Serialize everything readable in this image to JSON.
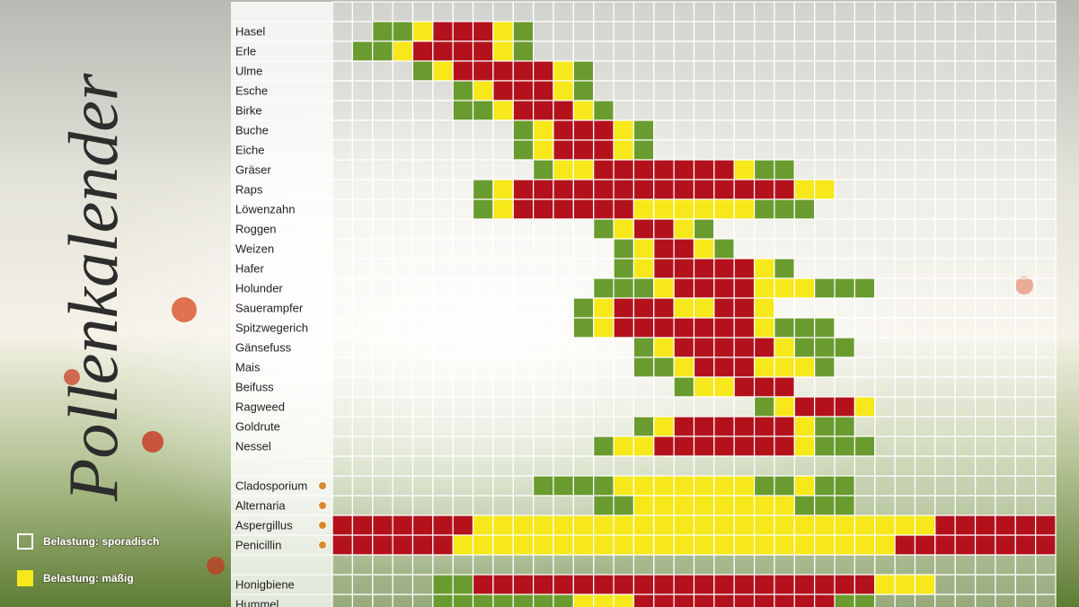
{
  "title": "Pollenkalender",
  "level_colors": [
    "#6a9b2f",
    "#f6e81a",
    "#b3121c"
  ],
  "legend": [
    {
      "label": "Belastung: sporadisch",
      "level": 0
    },
    {
      "label": "Belastung: mäßig",
      "level": 1
    }
  ],
  "groups": {
    "plants": [
      {
        "label": "Hasel",
        "cells": [
          0,
          0,
          1,
          1,
          2,
          3,
          3,
          3,
          2,
          1,
          0,
          0,
          0,
          0,
          0,
          0,
          0,
          0,
          0,
          0,
          0,
          0,
          0,
          0,
          0,
          0,
          0,
          0,
          0,
          0,
          0,
          0,
          0,
          0,
          0,
          0
        ]
      },
      {
        "label": "Erle",
        "cells": [
          0,
          1,
          1,
          2,
          3,
          3,
          3,
          3,
          2,
          1,
          0,
          0,
          0,
          0,
          0,
          0,
          0,
          0,
          0,
          0,
          0,
          0,
          0,
          0,
          0,
          0,
          0,
          0,
          0,
          0,
          0,
          0,
          0,
          0,
          0,
          0
        ]
      },
      {
        "label": "Ulme",
        "cells": [
          0,
          0,
          0,
          0,
          1,
          2,
          3,
          3,
          3,
          3,
          3,
          2,
          1,
          0,
          0,
          0,
          0,
          0,
          0,
          0,
          0,
          0,
          0,
          0,
          0,
          0,
          0,
          0,
          0,
          0,
          0,
          0,
          0,
          0,
          0,
          0
        ]
      },
      {
        "label": "Esche",
        "cells": [
          0,
          0,
          0,
          0,
          0,
          0,
          1,
          2,
          3,
          3,
          3,
          2,
          1,
          0,
          0,
          0,
          0,
          0,
          0,
          0,
          0,
          0,
          0,
          0,
          0,
          0,
          0,
          0,
          0,
          0,
          0,
          0,
          0,
          0,
          0,
          0
        ]
      },
      {
        "label": "Birke",
        "cells": [
          0,
          0,
          0,
          0,
          0,
          0,
          1,
          1,
          2,
          3,
          3,
          3,
          2,
          1,
          0,
          0,
          0,
          0,
          0,
          0,
          0,
          0,
          0,
          0,
          0,
          0,
          0,
          0,
          0,
          0,
          0,
          0,
          0,
          0,
          0,
          0
        ]
      },
      {
        "label": "Buche",
        "cells": [
          0,
          0,
          0,
          0,
          0,
          0,
          0,
          0,
          0,
          1,
          2,
          3,
          3,
          3,
          2,
          1,
          0,
          0,
          0,
          0,
          0,
          0,
          0,
          0,
          0,
          0,
          0,
          0,
          0,
          0,
          0,
          0,
          0,
          0,
          0,
          0
        ]
      },
      {
        "label": "Eiche",
        "cells": [
          0,
          0,
          0,
          0,
          0,
          0,
          0,
          0,
          0,
          1,
          2,
          3,
          3,
          3,
          2,
          1,
          0,
          0,
          0,
          0,
          0,
          0,
          0,
          0,
          0,
          0,
          0,
          0,
          0,
          0,
          0,
          0,
          0,
          0,
          0,
          0
        ]
      },
      {
        "label": "Gräser",
        "cells": [
          0,
          0,
          0,
          0,
          0,
          0,
          0,
          0,
          0,
          0,
          1,
          2,
          2,
          3,
          3,
          3,
          3,
          3,
          3,
          3,
          2,
          1,
          1,
          0,
          0,
          0,
          0,
          0,
          0,
          0,
          0,
          0,
          0,
          0,
          0,
          0
        ]
      },
      {
        "label": "Raps",
        "cells": [
          0,
          0,
          0,
          0,
          0,
          0,
          0,
          1,
          2,
          3,
          3,
          3,
          3,
          3,
          3,
          3,
          3,
          3,
          3,
          3,
          3,
          3,
          3,
          2,
          2,
          0,
          0,
          0,
          0,
          0,
          0,
          0,
          0,
          0,
          0,
          0
        ]
      },
      {
        "label": "Löwenzahn",
        "cells": [
          0,
          0,
          0,
          0,
          0,
          0,
          0,
          1,
          2,
          3,
          3,
          3,
          3,
          3,
          3,
          2,
          2,
          2,
          2,
          2,
          2,
          1,
          1,
          1,
          0,
          0,
          0,
          0,
          0,
          0,
          0,
          0,
          0,
          0,
          0,
          0
        ]
      },
      {
        "label": "Roggen",
        "cells": [
          0,
          0,
          0,
          0,
          0,
          0,
          0,
          0,
          0,
          0,
          0,
          0,
          0,
          1,
          2,
          3,
          3,
          2,
          1,
          0,
          0,
          0,
          0,
          0,
          0,
          0,
          0,
          0,
          0,
          0,
          0,
          0,
          0,
          0,
          0,
          0
        ]
      },
      {
        "label": "Weizen",
        "cells": [
          0,
          0,
          0,
          0,
          0,
          0,
          0,
          0,
          0,
          0,
          0,
          0,
          0,
          0,
          1,
          2,
          3,
          3,
          2,
          1,
          0,
          0,
          0,
          0,
          0,
          0,
          0,
          0,
          0,
          0,
          0,
          0,
          0,
          0,
          0,
          0
        ]
      },
      {
        "label": "Hafer",
        "cells": [
          0,
          0,
          0,
          0,
          0,
          0,
          0,
          0,
          0,
          0,
          0,
          0,
          0,
          0,
          1,
          2,
          3,
          3,
          3,
          3,
          3,
          2,
          1,
          0,
          0,
          0,
          0,
          0,
          0,
          0,
          0,
          0,
          0,
          0,
          0,
          0
        ]
      },
      {
        "label": "Holunder",
        "cells": [
          0,
          0,
          0,
          0,
          0,
          0,
          0,
          0,
          0,
          0,
          0,
          0,
          0,
          1,
          1,
          1,
          2,
          3,
          3,
          3,
          3,
          2,
          2,
          2,
          1,
          1,
          1,
          0,
          0,
          0,
          0,
          0,
          0,
          0,
          0,
          0
        ]
      },
      {
        "label": "Sauerampfer",
        "cells": [
          0,
          0,
          0,
          0,
          0,
          0,
          0,
          0,
          0,
          0,
          0,
          0,
          1,
          2,
          3,
          3,
          3,
          2,
          2,
          3,
          3,
          2,
          0,
          0,
          0,
          0,
          0,
          0,
          0,
          0,
          0,
          0,
          0,
          0,
          0,
          0
        ]
      },
      {
        "label": "Spitzwegerich",
        "cells": [
          0,
          0,
          0,
          0,
          0,
          0,
          0,
          0,
          0,
          0,
          0,
          0,
          1,
          2,
          3,
          3,
          3,
          3,
          3,
          3,
          3,
          2,
          1,
          1,
          1,
          0,
          0,
          0,
          0,
          0,
          0,
          0,
          0,
          0,
          0,
          0
        ]
      },
      {
        "label": "Gänsefuss",
        "cells": [
          0,
          0,
          0,
          0,
          0,
          0,
          0,
          0,
          0,
          0,
          0,
          0,
          0,
          0,
          0,
          1,
          2,
          3,
          3,
          3,
          3,
          3,
          2,
          1,
          1,
          1,
          0,
          0,
          0,
          0,
          0,
          0,
          0,
          0,
          0,
          0
        ]
      },
      {
        "label": "Mais",
        "cells": [
          0,
          0,
          0,
          0,
          0,
          0,
          0,
          0,
          0,
          0,
          0,
          0,
          0,
          0,
          0,
          1,
          1,
          2,
          3,
          3,
          3,
          2,
          2,
          2,
          1,
          0,
          0,
          0,
          0,
          0,
          0,
          0,
          0,
          0,
          0,
          0
        ]
      },
      {
        "label": "Beifuss",
        "cells": [
          0,
          0,
          0,
          0,
          0,
          0,
          0,
          0,
          0,
          0,
          0,
          0,
          0,
          0,
          0,
          0,
          0,
          1,
          2,
          2,
          3,
          3,
          3,
          0,
          0,
          0,
          0,
          0,
          0,
          0,
          0,
          0,
          0,
          0,
          0,
          0
        ]
      },
      {
        "label": "Ragweed",
        "cells": [
          0,
          0,
          0,
          0,
          0,
          0,
          0,
          0,
          0,
          0,
          0,
          0,
          0,
          0,
          0,
          0,
          0,
          0,
          0,
          0,
          0,
          1,
          2,
          3,
          3,
          3,
          2,
          0,
          0,
          0,
          0,
          0,
          0,
          0,
          0,
          0
        ]
      },
      {
        "label": "Goldrute",
        "cells": [
          0,
          0,
          0,
          0,
          0,
          0,
          0,
          0,
          0,
          0,
          0,
          0,
          0,
          0,
          0,
          1,
          2,
          3,
          3,
          3,
          3,
          3,
          3,
          2,
          1,
          1,
          0,
          0,
          0,
          0,
          0,
          0,
          0,
          0,
          0,
          0
        ]
      },
      {
        "label": "Nessel",
        "cells": [
          0,
          0,
          0,
          0,
          0,
          0,
          0,
          0,
          0,
          0,
          0,
          0,
          0,
          1,
          2,
          2,
          3,
          3,
          3,
          3,
          3,
          3,
          3,
          2,
          1,
          1,
          1,
          0,
          0,
          0,
          0,
          0,
          0,
          0,
          0,
          0
        ]
      }
    ],
    "molds": [
      {
        "label": "Cladosporium",
        "cells": [
          0,
          0,
          0,
          0,
          0,
          0,
          0,
          0,
          0,
          0,
          1,
          1,
          1,
          1,
          2,
          2,
          2,
          2,
          2,
          2,
          2,
          1,
          1,
          2,
          1,
          1,
          0,
          0,
          0,
          0,
          0,
          0,
          0,
          0,
          0,
          0
        ]
      },
      {
        "label": "Alternaria",
        "cells": [
          0,
          0,
          0,
          0,
          0,
          0,
          0,
          0,
          0,
          0,
          0,
          0,
          0,
          1,
          1,
          2,
          2,
          2,
          2,
          2,
          2,
          2,
          2,
          1,
          1,
          1,
          0,
          0,
          0,
          0,
          0,
          0,
          0,
          0,
          0,
          0
        ]
      },
      {
        "label": "Aspergillus",
        "cells": [
          3,
          3,
          3,
          3,
          3,
          3,
          3,
          2,
          2,
          2,
          2,
          2,
          2,
          2,
          2,
          2,
          2,
          2,
          2,
          2,
          2,
          2,
          2,
          2,
          2,
          2,
          2,
          2,
          2,
          2,
          3,
          3,
          3,
          3,
          3,
          3
        ]
      },
      {
        "label": "Penicillin",
        "cells": [
          3,
          3,
          3,
          3,
          3,
          3,
          2,
          2,
          2,
          2,
          2,
          2,
          2,
          2,
          2,
          2,
          2,
          2,
          2,
          2,
          2,
          2,
          2,
          2,
          2,
          2,
          2,
          2,
          3,
          3,
          3,
          3,
          3,
          3,
          3,
          3
        ]
      }
    ],
    "insects": [
      {
        "label": "Honigbiene",
        "cells": [
          0,
          0,
          0,
          0,
          0,
          1,
          1,
          3,
          3,
          3,
          3,
          3,
          3,
          3,
          3,
          3,
          3,
          3,
          3,
          3,
          3,
          3,
          3,
          3,
          3,
          3,
          3,
          2,
          2,
          2,
          0,
          0,
          0,
          0,
          0,
          0
        ]
      },
      {
        "label": "Hummel",
        "cells": [
          0,
          0,
          0,
          0,
          0,
          1,
          1,
          1,
          1,
          1,
          1,
          1,
          2,
          2,
          2,
          3,
          3,
          3,
          3,
          3,
          3,
          3,
          3,
          3,
          3,
          1,
          1,
          0,
          0,
          0,
          0,
          0,
          0,
          0,
          0,
          0
        ]
      }
    ]
  }
}
